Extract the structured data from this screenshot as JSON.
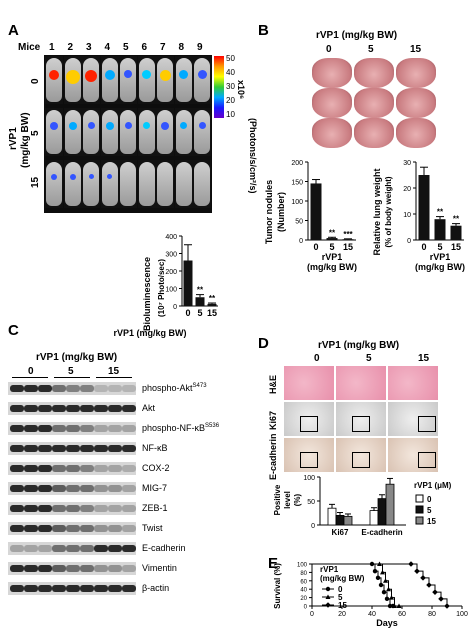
{
  "panels": {
    "a": "A",
    "b": "B",
    "c": "C",
    "d": "D",
    "e": "E"
  },
  "panel_a": {
    "mice_label": "Mice",
    "mouse_ids": [
      "1",
      "2",
      "3",
      "4",
      "5",
      "6",
      "7",
      "8",
      "9"
    ],
    "dose_row_labels": [
      "0",
      "5",
      "15"
    ],
    "y_label_1": "rVP1",
    "y_label_2": "(mg/kg BW)",
    "colorbar_ticks": [
      "50",
      "40",
      "30",
      "20",
      "10"
    ],
    "colorbar_unit": "x10⁶",
    "colorbar_label": "(Photons/s/cm²/s)",
    "bar_colors": {
      "bar": "#111111"
    }
  },
  "panel_b": {
    "title": "rVP1 (mg/kg BW)",
    "dose_labels": [
      "0",
      "5",
      "15"
    ]
  },
  "panel_c": {
    "title": "rVP1 (mg/kg BW)",
    "dose_labels": [
      "0",
      "5",
      "15"
    ],
    "blots": [
      "phospho-Akt",
      "Akt",
      "phospho-NF-κB",
      "NF-κB",
      "COX-2",
      "MIG-7",
      "ZEB-1",
      "Twist",
      "E-cadherin",
      "Vimentin",
      "β-actin"
    ],
    "superscripts": [
      "S473",
      "",
      "S536",
      "",
      "",
      "",
      "",
      "",
      "",
      "",
      ""
    ]
  },
  "panel_d": {
    "title": "rVP1 (mg/kg BW)",
    "dose_labels": [
      "0",
      "5",
      "15"
    ],
    "stain_labels": [
      "H&E",
      "Ki67",
      "E-cadherin"
    ]
  },
  "chart_data": [
    {
      "type": "bar",
      "panel": "A",
      "categories": [
        "0",
        "5",
        "15"
      ],
      "values": [
        260,
        50,
        12
      ],
      "errors": [
        90,
        15,
        5
      ],
      "significance": [
        "",
        "**",
        "**"
      ],
      "ylim": [
        0,
        400
      ],
      "yticks": [
        "0",
        "100",
        "200",
        "300",
        "400"
      ],
      "ylabel": "Bioluminescence (10⁷ Photo/sec)",
      "xlabel": "rVP1 (mg/kg BW)"
    },
    {
      "type": "bar",
      "panel": "B-left",
      "categories": [
        "0",
        "5",
        "15"
      ],
      "values": [
        145,
        5,
        2
      ],
      "errors": [
        10,
        2,
        1
      ],
      "significance": [
        "",
        "**",
        "***"
      ],
      "ylim": [
        0,
        200
      ],
      "yticks": [
        "0",
        "50",
        "100",
        "150",
        "200"
      ],
      "ylabel": "Tumor nodules (Number)",
      "xlabel": "rVP1 (mg/kg BW)"
    },
    {
      "type": "bar",
      "panel": "B-right",
      "categories": [
        "0",
        "5",
        "15"
      ],
      "values": [
        25,
        8,
        5.5
      ],
      "errors": [
        3,
        1,
        0.8
      ],
      "significance": [
        "",
        "**",
        "**"
      ],
      "ylim": [
        0,
        30
      ],
      "yticks": [
        "0",
        "10",
        "20",
        "30"
      ],
      "ylabel": "Relative lung weight (% of body weight)",
      "xlabel": "rVP1 (mg/kg BW)"
    },
    {
      "type": "bar",
      "panel": "D",
      "categories": [
        "Ki67",
        "E-cadherin"
      ],
      "series": [
        {
          "name": "0",
          "values": [
            35,
            30
          ],
          "errors": [
            8,
            6
          ]
        },
        {
          "name": "5",
          "values": [
            20,
            55
          ],
          "errors": [
            6,
            8
          ]
        },
        {
          "name": "15",
          "values": [
            18,
            85
          ],
          "errors": [
            5,
            12
          ]
        }
      ],
      "ylim": [
        0,
        100
      ],
      "yticks": [
        "0",
        "50",
        "100"
      ],
      "ylabel": "Positive level (%)",
      "legend_title": "rVP1 (μM)",
      "colors": [
        "#ffffff",
        "#111111",
        "#888888"
      ]
    },
    {
      "type": "line",
      "panel": "E",
      "xlabel": "Days",
      "ylabel": "Survival (%)",
      "xlim": [
        0,
        100
      ],
      "ylim": [
        0,
        100
      ],
      "xticks": [
        "0",
        "20",
        "40",
        "60",
        "80",
        "100"
      ],
      "yticks": [
        "0",
        "20",
        "40",
        "60",
        "80",
        "100"
      ],
      "legend_title": "rVP1 (mg/kg BW)",
      "series": [
        {
          "name": "0",
          "marker": "circle",
          "x": [
            0,
            40,
            42,
            44,
            46,
            48,
            50,
            52,
            54
          ],
          "y": [
            100,
            100,
            83,
            67,
            50,
            33,
            17,
            0,
            0
          ]
        },
        {
          "name": "5",
          "marker": "triangle",
          "x": [
            0,
            45,
            47,
            49,
            51,
            53,
            55,
            58
          ],
          "y": [
            100,
            100,
            80,
            60,
            40,
            20,
            0,
            0
          ]
        },
        {
          "name": "15",
          "marker": "diamond",
          "x": [
            0,
            66,
            70,
            74,
            78,
            82,
            86,
            90
          ],
          "y": [
            100,
            100,
            83,
            67,
            50,
            33,
            17,
            0
          ]
        }
      ]
    }
  ]
}
